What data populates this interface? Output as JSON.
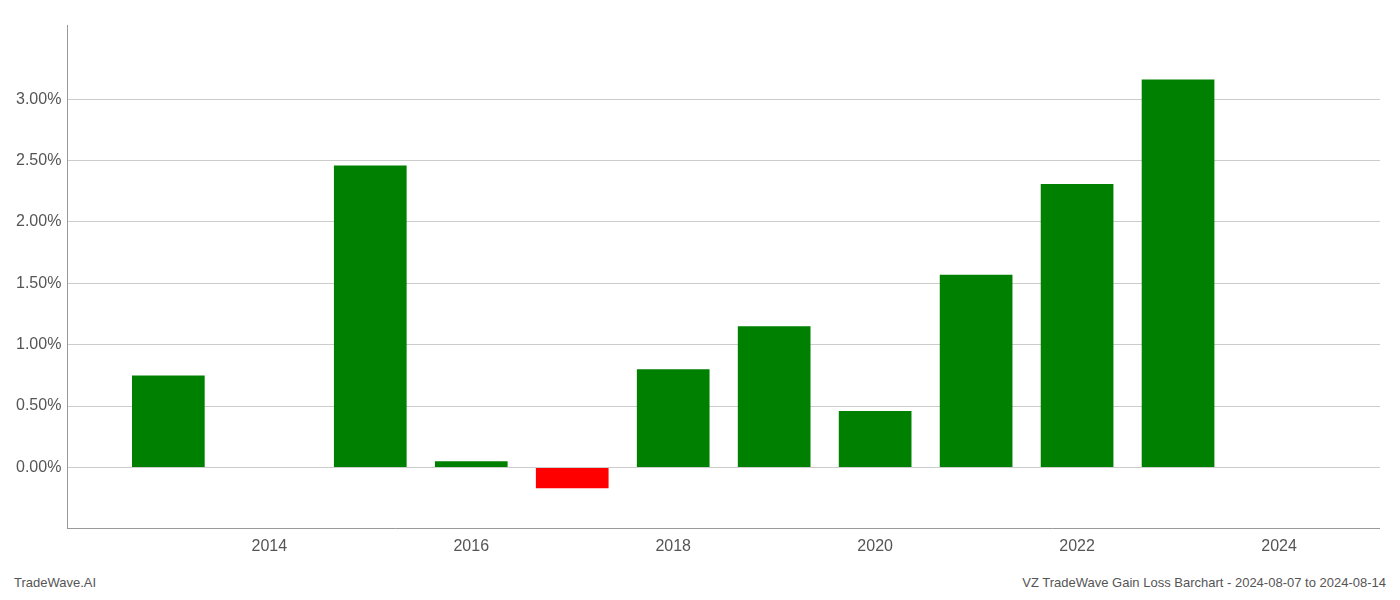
{
  "chart_data": {
    "type": "bar",
    "x": [
      2013,
      2015,
      2016,
      2017,
      2018,
      2019,
      2020,
      2021,
      2022,
      2023
    ],
    "values": [
      0.0075,
      0.0246,
      0.0005,
      -0.0017,
      0.008,
      0.0115,
      0.0046,
      0.0157,
      0.0231,
      0.0316
    ],
    "colors": [
      "#008000",
      "#008000",
      "#008000",
      "#ff0000",
      "#008000",
      "#008000",
      "#008000",
      "#008000",
      "#008000",
      "#008000"
    ],
    "xlim": [
      2012.0,
      2025.0
    ],
    "ylim": [
      -0.005,
      0.036
    ],
    "xticks": [
      2014,
      2016,
      2018,
      2020,
      2022,
      2024
    ],
    "yticks": [
      {
        "value": 0.0,
        "label": "0.00%"
      },
      {
        "value": 0.005,
        "label": "0.50%"
      },
      {
        "value": 0.01,
        "label": "1.00%"
      },
      {
        "value": 0.015,
        "label": "1.50%"
      },
      {
        "value": 0.02,
        "label": "2.00%"
      },
      {
        "value": 0.025,
        "label": "2.50%"
      },
      {
        "value": 0.03,
        "label": "3.00%"
      }
    ],
    "grid": "y",
    "annotations": [
      "TradeWave.AI",
      "VZ TradeWave Gain Loss Barchart - 2024-08-07 to 2024-08-14"
    ]
  }
}
